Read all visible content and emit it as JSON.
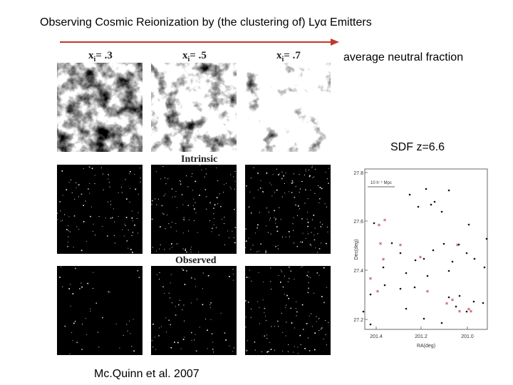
{
  "title": "Observing Cosmic Reionization by (the clustering of) Lyα Emitters",
  "arrow_label": "average neutral fraction",
  "panels": {
    "xi_labels": [
      {
        "symbol": "x",
        "sub": "i",
        "value": "= .3"
      },
      {
        "symbol": "x",
        "sub": "i",
        "value": "= .5"
      },
      {
        "symbol": "x",
        "sub": "i",
        "value": "= .7"
      }
    ],
    "row_labels": [
      "Intrinsic",
      "Observed"
    ]
  },
  "sdf": {
    "label": "SDF z=6.6",
    "scale_label": "10 h⁻¹ Mpc",
    "xlabel": "RA(deg)",
    "ylabel": "Dec(deg)",
    "xticks": [
      "201.4",
      "201.2",
      "201.0"
    ],
    "yticks": [
      "27.8",
      "27.6",
      "27.4",
      "27.2"
    ]
  },
  "citation": "Mc.Quinn et al. 2007",
  "colors": {
    "arrow": "#c0392b",
    "asterisk": "#a01818"
  }
}
